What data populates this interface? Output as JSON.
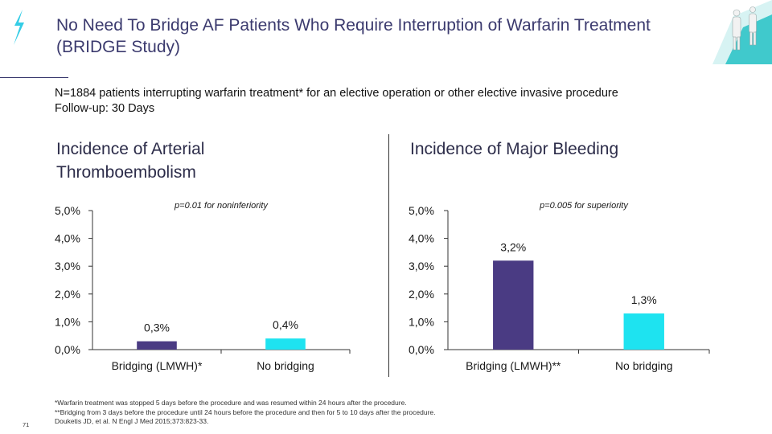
{
  "slide": {
    "title": "No Need To Bridge AF Patients Who Require Interruption of Warfarin Treatment (BRIDGE Study)",
    "subline_1": "N=1884 patients interrupting warfarin treatment* for an elective operation or other elective invasive procedure",
    "subline_2": "Follow-up: 30 Days",
    "footnotes": [
      "*Warfarin treatment was stopped 5 days before the procedure and was resumed within 24 hours after the procedure.",
      "**Bridging from 3 days before the procedure until 24 hours before the procedure and then for 5 to 10 days after the procedure.",
      "Douketis JD, et al. N Engl J Med 2015;373:823-33."
    ],
    "page_number": "71"
  },
  "colors": {
    "accent": "#3b3a6e",
    "bar_bridging": "#4a3b83",
    "bar_no_bridging": "#1ee3f0",
    "logo": "#1fc8e3"
  },
  "chart_data": [
    {
      "type": "bar",
      "title": "Incidence of Arterial Thromboembolism",
      "annotation": "p=0.01 for noninferiority",
      "categories": [
        "Bridging (LMWH)*",
        "No bridging"
      ],
      "values": [
        0.3,
        0.4
      ],
      "value_labels": [
        "0,3%",
        "0,4%"
      ],
      "yticks": [
        "0,0%",
        "1,0%",
        "2,0%",
        "3,0%",
        "4,0%",
        "5,0%"
      ],
      "ylim": [
        0,
        5
      ],
      "xlabel": "",
      "ylabel": ""
    },
    {
      "type": "bar",
      "title": "Incidence of Major Bleeding",
      "annotation": "p=0.005 for superiority",
      "categories": [
        "Bridging (LMWH)**",
        "No bridging"
      ],
      "values": [
        3.2,
        1.3
      ],
      "value_labels": [
        "3,2%",
        "1,3%"
      ],
      "yticks": [
        "0,0%",
        "1,0%",
        "2,0%",
        "3,0%",
        "4,0%",
        "5,0%"
      ],
      "ylim": [
        0,
        5
      ],
      "xlabel": "",
      "ylabel": ""
    }
  ]
}
